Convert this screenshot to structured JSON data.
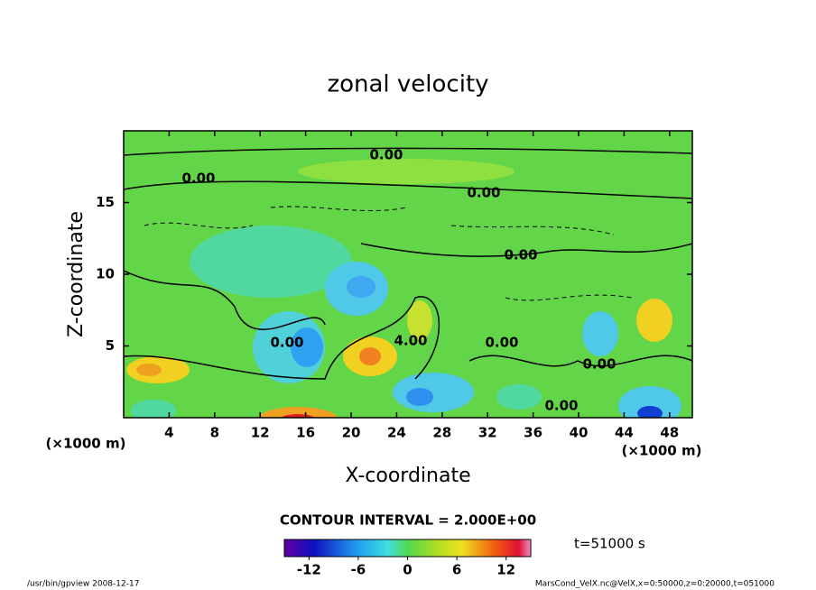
{
  "chart_data": {
    "type": "contour",
    "title": "zonal velocity",
    "xlabel": "X-coordinate",
    "ylabel": "Z-coordinate",
    "unit": "(×1000 m)",
    "xlim": [
      0,
      50
    ],
    "xticks": [
      4,
      8,
      12,
      16,
      20,
      24,
      28,
      32,
      36,
      40,
      44,
      48
    ],
    "ylim": [
      0,
      20
    ],
    "yticks": [
      5,
      10,
      15
    ],
    "contour_labels": [
      "0.00",
      "0.00",
      "0.00",
      "0.00",
      "0.00",
      "0.00",
      "0.00",
      "4.00",
      "0.00"
    ],
    "contour_interval": "CONTOUR INTERVAL = 2.000E+00",
    "time": "t=51000 s",
    "colorbar": {
      "lim": [
        -15,
        15
      ],
      "ticks": [
        -12,
        -6,
        0,
        6,
        12
      ]
    },
    "footer_left": "/usr/bin/gpview   2008-12-17",
    "footer_right": "MarsCond_VelX.nc@VelX,x=0:50000,z=0:20000,t=051000"
  }
}
